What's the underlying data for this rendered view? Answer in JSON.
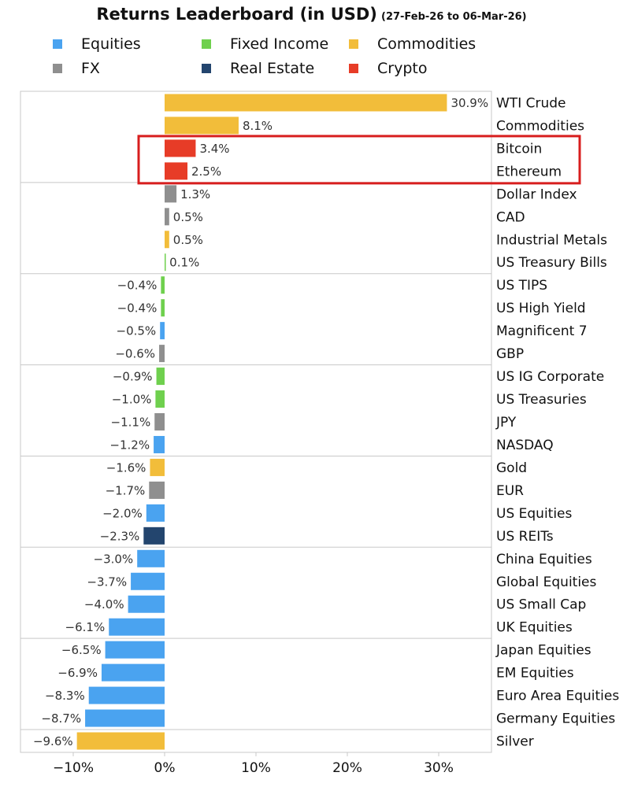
{
  "title": "Returns Leaderboard (in USD)",
  "subtitle": "(27-Feb-26 to 06-Mar-26)",
  "colors": {
    "Equities": "#4aa3f0",
    "Fixed Income": "#6fd04e",
    "Commodities": "#f2bd3a",
    "FX": "#8f8f8f",
    "Real Estate": "#23456e",
    "Crypto": "#e73c27",
    "highlight": "#d81e1e"
  },
  "legend": [
    {
      "label": "Equities",
      "color": "#4aa3f0"
    },
    {
      "label": "Fixed Income",
      "color": "#6fd04e"
    },
    {
      "label": "Commodities",
      "color": "#f2bd3a"
    },
    {
      "label": "FX",
      "color": "#8f8f8f"
    },
    {
      "label": "Real Estate",
      "color": "#23456e"
    },
    {
      "label": "Crypto",
      "color": "#e73c27"
    }
  ],
  "chart_data": {
    "type": "bar",
    "orientation": "horizontal",
    "title": "Returns Leaderboard (in USD)",
    "subtitle": "(27-Feb-26 to 06-Mar-26)",
    "xlim": [
      -16,
      36
    ],
    "x_ticks": [
      -10,
      0,
      10,
      20,
      30
    ],
    "x_tick_labels": [
      "−10%",
      "0%",
      "10%",
      "20%",
      "30%"
    ],
    "group_size": 4,
    "highlighted": [
      "Bitcoin",
      "Ethereum"
    ],
    "bars": [
      {
        "label": "WTI Crude",
        "value": 30.9,
        "text": "30.9%",
        "asset_class": "Commodities"
      },
      {
        "label": "Commodities",
        "value": 8.1,
        "text": "8.1%",
        "asset_class": "Commodities"
      },
      {
        "label": "Bitcoin",
        "value": 3.4,
        "text": "3.4%",
        "asset_class": "Crypto"
      },
      {
        "label": "Ethereum",
        "value": 2.5,
        "text": "2.5%",
        "asset_class": "Crypto"
      },
      {
        "label": "Dollar Index",
        "value": 1.3,
        "text": "1.3%",
        "asset_class": "FX"
      },
      {
        "label": "CAD",
        "value": 0.5,
        "text": "0.5%",
        "asset_class": "FX"
      },
      {
        "label": "Industrial Metals",
        "value": 0.5,
        "text": "0.5%",
        "asset_class": "Commodities"
      },
      {
        "label": "US Treasury Bills",
        "value": 0.1,
        "text": "0.1%",
        "asset_class": "Fixed Income"
      },
      {
        "label": "US TIPS",
        "value": -0.4,
        "text": "−0.4%",
        "asset_class": "Fixed Income"
      },
      {
        "label": "US High Yield",
        "value": -0.4,
        "text": "−0.4%",
        "asset_class": "Fixed Income"
      },
      {
        "label": "Magnificent 7",
        "value": -0.5,
        "text": "−0.5%",
        "asset_class": "Equities"
      },
      {
        "label": "GBP",
        "value": -0.6,
        "text": "−0.6%",
        "asset_class": "FX"
      },
      {
        "label": "US IG Corporate",
        "value": -0.9,
        "text": "−0.9%",
        "asset_class": "Fixed Income"
      },
      {
        "label": "US Treasuries",
        "value": -1.0,
        "text": "−1.0%",
        "asset_class": "Fixed Income"
      },
      {
        "label": "JPY",
        "value": -1.1,
        "text": "−1.1%",
        "asset_class": "FX"
      },
      {
        "label": "NASDAQ",
        "value": -1.2,
        "text": "−1.2%",
        "asset_class": "Equities"
      },
      {
        "label": "Gold",
        "value": -1.6,
        "text": "−1.6%",
        "asset_class": "Commodities"
      },
      {
        "label": "EUR",
        "value": -1.7,
        "text": "−1.7%",
        "asset_class": "FX"
      },
      {
        "label": "US Equities",
        "value": -2.0,
        "text": "−2.0%",
        "asset_class": "Equities"
      },
      {
        "label": "US REITs",
        "value": -2.3,
        "text": "−2.3%",
        "asset_class": "Real Estate"
      },
      {
        "label": "China Equities",
        "value": -3.0,
        "text": "−3.0%",
        "asset_class": "Equities"
      },
      {
        "label": "Global Equities",
        "value": -3.7,
        "text": "−3.7%",
        "asset_class": "Equities"
      },
      {
        "label": "US Small Cap",
        "value": -4.0,
        "text": "−4.0%",
        "asset_class": "Equities"
      },
      {
        "label": "UK Equities",
        "value": -6.1,
        "text": "−6.1%",
        "asset_class": "Equities"
      },
      {
        "label": "Japan Equities",
        "value": -6.5,
        "text": "−6.5%",
        "asset_class": "Equities"
      },
      {
        "label": "EM Equities",
        "value": -6.9,
        "text": "−6.9%",
        "asset_class": "Equities"
      },
      {
        "label": "Euro Area Equities",
        "value": -8.3,
        "text": "−8.3%",
        "asset_class": "Equities"
      },
      {
        "label": "Germany Equities",
        "value": -8.7,
        "text": "−8.7%",
        "asset_class": "Equities"
      },
      {
        "label": "Silver",
        "value": -9.6,
        "text": "−9.6%",
        "asset_class": "Commodities"
      }
    ]
  }
}
